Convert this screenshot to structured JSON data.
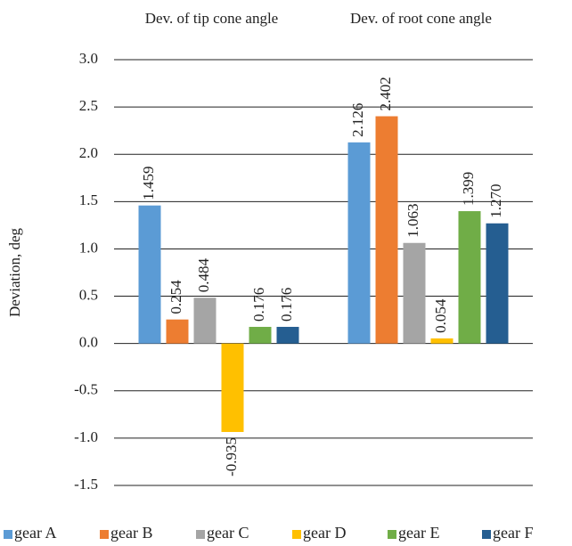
{
  "chart_data": {
    "type": "bar",
    "categories": [
      "Dev. of tip cone angle",
      "Dev. of root cone angle"
    ],
    "y_label": "Deviation, deg",
    "series": [
      {
        "name": "gear A",
        "color": "#5b9bd5",
        "values": [
          1.459,
          2.126
        ]
      },
      {
        "name": "gear B",
        "color": "#ed7d31",
        "values": [
          0.254,
          2.402
        ]
      },
      {
        "name": "gear C",
        "color": "#a5a5a5",
        "values": [
          0.484,
          1.063
        ]
      },
      {
        "name": "gear D",
        "color": "#ffc000",
        "values": [
          -0.935,
          0.054
        ]
      },
      {
        "name": "gear E",
        "color": "#70ad47",
        "values": [
          0.176,
          1.399
        ]
      },
      {
        "name": "gear F",
        "color": "#255e91",
        "values": [
          0.176,
          1.27
        ],
        "value_labels": [
          "0.176",
          "1.270"
        ]
      }
    ],
    "ylim": [
      -1.5,
      3.0
    ],
    "yticks": [
      -1.5,
      {
        "value": -1,
        "label": "-1.0"
      },
      -0.5,
      {
        "value": 0,
        "label": "0.0"
      },
      0.5,
      {
        "value": 1,
        "label": "1.0"
      },
      1.5,
      {
        "value": 2,
        "label": "2.0"
      },
      2.5,
      {
        "value": 3,
        "label": "3.0"
      }
    ],
    "grid": true,
    "legend": "bottom"
  }
}
